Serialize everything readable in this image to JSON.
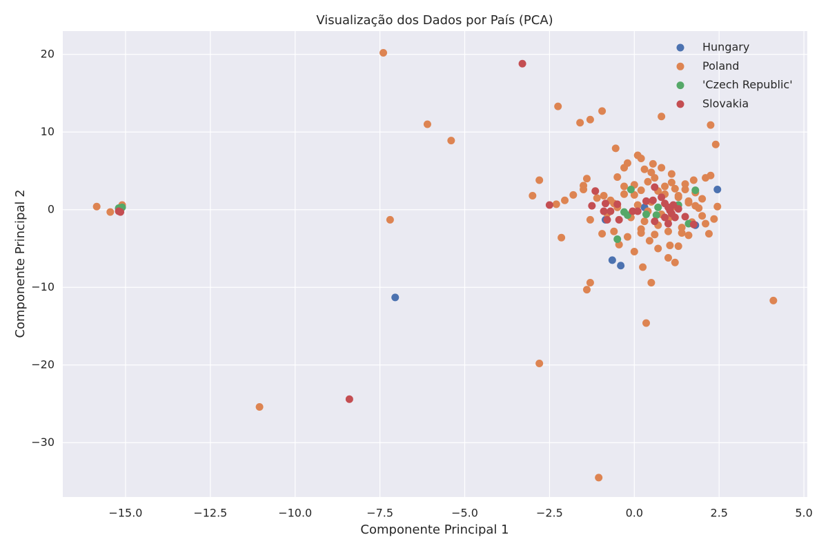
{
  "chart_data": {
    "type": "scatter",
    "title": "Visualização dos Dados por País (PCA)",
    "x_label": "Componente Principal 1",
    "y_label": "Componente Principal 2",
    "xlim": [
      -16.85,
      5.1
    ],
    "ylim": [
      -37,
      23
    ],
    "xticks": [
      {
        "value": -15,
        "label": "−15.0"
      },
      {
        "value": -12.5,
        "label": "−12.5"
      },
      {
        "value": -10,
        "label": "−10.0"
      },
      {
        "value": -7.5,
        "label": "−7.5"
      },
      {
        "value": -5,
        "label": "−5.0"
      },
      {
        "value": -2.5,
        "label": "−2.5"
      },
      {
        "value": 0,
        "label": "0.0"
      },
      {
        "value": 2.5,
        "label": "2.5"
      },
      {
        "value": 5,
        "label": "5.0"
      }
    ],
    "yticks": [
      {
        "value": -30,
        "label": "−30"
      },
      {
        "value": -20,
        "label": "−20"
      },
      {
        "value": -10,
        "label": "−10"
      },
      0,
      10,
      20
    ],
    "grid": true,
    "legend": "upper right",
    "series": [
      {
        "name": "Hungary",
        "color": "#4c72b0",
        "x": [
          2.45,
          -7.05,
          -0.65,
          -0.4,
          -0.85,
          0.3,
          1.8,
          -15.2
        ],
        "y": [
          2.6,
          -11.3,
          -6.5,
          -7.2,
          -1.3,
          0.3,
          -2.0,
          0.1
        ]
      },
      {
        "name": "Poland",
        "color": "#dd8452",
        "x": [
          -15.85,
          -15.45,
          -15.1,
          -7.4,
          -6.1,
          -5.4,
          -7.2,
          -11.05,
          -2.8,
          -1.05,
          4.1,
          0.35,
          -1.4,
          -1.3,
          0.5,
          0.25,
          -2.25,
          -1.6,
          -1.3,
          -0.95,
          0.8,
          2.25,
          2.4,
          -0.55,
          -2.8,
          -3.0,
          -2.3,
          -2.05,
          -1.8,
          -1.5,
          -1.5,
          -1.4,
          -2.15,
          -1.3,
          -0.95,
          -0.6,
          -0.45,
          -0.2,
          0.0,
          0.2,
          0.45,
          0.7,
          1.0,
          1.05,
          1.2,
          1.3,
          1.6,
          2.2,
          2.35,
          2.45,
          2.25,
          2.1,
          1.75,
          0.1,
          0.2,
          0.55,
          -0.2,
          -0.3,
          -0.5,
          0.3,
          0.8,
          1.1,
          -1.1,
          -0.9,
          -0.7,
          -0.3,
          0.0,
          0.2,
          0.4,
          0.6,
          0.9,
          1.2,
          1.5,
          1.8,
          2.0,
          -0.8,
          -0.5,
          -0.1,
          0.3,
          0.7,
          1.0,
          1.4,
          1.7,
          2.0,
          -0.6,
          0.1,
          0.5,
          0.9,
          1.3,
          1.6,
          1.9,
          0.2,
          0.6,
          1.0,
          1.4,
          0.4,
          0.8,
          1.2,
          1.6,
          2.1,
          -0.3,
          0.5,
          1.1,
          1.5,
          0.0,
          0.7,
          1.3,
          1.8
        ],
        "y": [
          0.4,
          -0.3,
          0.6,
          20.2,
          11.0,
          8.9,
          -1.3,
          -25.4,
          -19.8,
          -34.5,
          -11.7,
          -14.6,
          -10.3,
          -9.4,
          -9.4,
          -7.4,
          13.3,
          11.2,
          11.6,
          12.7,
          12.0,
          10.9,
          8.4,
          7.9,
          3.8,
          1.8,
          0.7,
          1.2,
          1.9,
          2.6,
          3.1,
          4.0,
          -3.6,
          -1.3,
          -3.1,
          -2.8,
          -4.5,
          -3.5,
          -5.4,
          -3.0,
          -4.0,
          -5.0,
          -6.2,
          -4.6,
          -6.8,
          -4.7,
          -3.3,
          -3.1,
          -1.2,
          0.4,
          4.4,
          4.1,
          3.8,
          7.0,
          6.6,
          5.9,
          6.0,
          5.4,
          4.2,
          5.2,
          5.4,
          4.6,
          1.5,
          1.8,
          1.2,
          2.0,
          3.2,
          2.5,
          3.6,
          4.1,
          3.0,
          2.7,
          3.3,
          2.2,
          1.4,
          -0.5,
          0.3,
          -1.0,
          -1.5,
          -2.0,
          -1.2,
          -2.3,
          -1.6,
          -0.8,
          0.8,
          0.6,
          1.0,
          2.0,
          1.8,
          0.9,
          0.2,
          -2.5,
          -3.2,
          -2.8,
          -3.0,
          -0.2,
          -0.6,
          0.4,
          1.1,
          -1.8,
          3.0,
          4.8,
          3.5,
          2.6,
          1.9,
          2.4,
          1.6,
          0.5
        ]
      },
      {
        "name": "'Czech Republic'",
        "color": "#55a868",
        "x": [
          -15.2,
          -15.1,
          -0.1,
          1.8,
          -0.5,
          -0.3,
          -0.2,
          0.35,
          0.65,
          0.7,
          1.3,
          1.6
        ],
        "y": [
          0.2,
          0.3,
          2.6,
          2.5,
          -3.8,
          -0.3,
          -0.7,
          -0.6,
          -0.7,
          0.3,
          0.6,
          -1.8
        ]
      },
      {
        "name": "Slovakia",
        "color": "#c44e52",
        "x": [
          -3.3,
          -8.4,
          -15.2,
          -15.15,
          -2.5,
          -1.25,
          -1.15,
          -0.85,
          -0.9,
          -0.7,
          -0.5,
          -0.45,
          -0.8,
          -0.05,
          0.1,
          0.35,
          0.55,
          0.6,
          0.6,
          0.8,
          0.9,
          1.0,
          1.1,
          1.0,
          1.2,
          1.3,
          1.5,
          0.9,
          1.15,
          1.75,
          1.05
        ],
        "y": [
          18.8,
          -24.4,
          -0.2,
          -0.3,
          0.6,
          0.5,
          2.4,
          0.8,
          -0.2,
          -0.2,
          0.7,
          -1.3,
          -1.3,
          -0.2,
          -0.2,
          1.1,
          1.2,
          -1.5,
          2.9,
          1.6,
          0.8,
          0.3,
          -0.5,
          -1.8,
          -1.0,
          0.1,
          -0.9,
          -1.0,
          0.6,
          -1.9,
          -0.1
        ]
      }
    ]
  }
}
